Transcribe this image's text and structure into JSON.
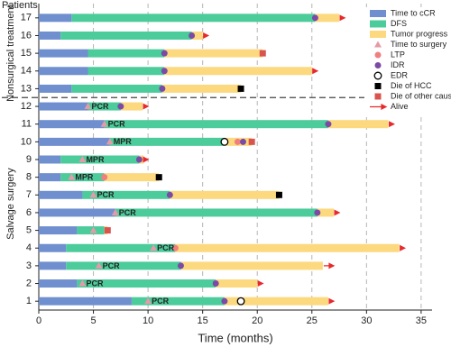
{
  "chart_data": {
    "type": "swimmer",
    "top_label": "Patients",
    "xlabel": "Time (months)",
    "xlim": [
      0,
      36
    ],
    "xticks": [
      0,
      5,
      10,
      15,
      20,
      25,
      30,
      35
    ],
    "grid": true,
    "categories": [
      "1",
      "2",
      "3",
      "4",
      "5",
      "6",
      "7",
      "8",
      "9",
      "10",
      "11",
      "12",
      "13",
      "14",
      "15",
      "16",
      "17"
    ],
    "groups": [
      {
        "label": "Salvage surgery",
        "count": 12
      },
      {
        "label": "Nonsurgical treatment",
        "count": 5
      }
    ],
    "series": [
      {
        "name": "Time to cCR",
        "color": "#6f8fcf",
        "values": [
          8.5,
          3.5,
          2.5,
          2.5,
          3.5,
          7,
          4,
          2,
          2,
          6.5,
          6,
          4.5,
          3,
          4.5,
          4.5,
          2,
          3
        ]
      },
      {
        "name": "DFS",
        "color": "#4ccb9b",
        "values": [
          8.5,
          12.7,
          10.5,
          10,
          2.5,
          18.5,
          8,
          4,
          7.2,
          10.5,
          20.5,
          3,
          8.3,
          7,
          7,
          12,
          22.3
        ]
      },
      {
        "name": "Tumor progress",
        "color": "#fcd97f",
        "values": [
          9.5,
          3.8,
          13,
          20.5,
          0.3,
          1.5,
          10,
          5,
          0.4,
          2.5,
          5.5,
          2,
          7.2,
          13.5,
          9,
          1,
          2.2
        ]
      }
    ],
    "markers": [
      {
        "name": "Time to surgery",
        "color": "#e59aa8",
        "shape": "triangle",
        "values": [
          10,
          4,
          5.5,
          10.5,
          5,
          7,
          5,
          3,
          4,
          6.5,
          6,
          4.5,
          null,
          null,
          null,
          null,
          null
        ]
      },
      {
        "name": "LTP",
        "color": "#f07f7f",
        "shape": "circle",
        "values": [
          null,
          null,
          null,
          12.5,
          null,
          null,
          null,
          6,
          null,
          18.2,
          null,
          null,
          null,
          null,
          null,
          null,
          null
        ]
      },
      {
        "name": "IDR",
        "color": "#7b4aa6",
        "shape": "circle",
        "values": [
          17,
          16.2,
          13,
          null,
          null,
          25.5,
          12,
          null,
          9.2,
          18.7,
          26.5,
          7.5,
          11.3,
          11.5,
          11.5,
          14,
          25.3
        ]
      },
      {
        "name": "EDR",
        "color": "#000000",
        "shape": "open-circle",
        "values": [
          18.5,
          null,
          null,
          null,
          null,
          null,
          null,
          null,
          null,
          17,
          null,
          null,
          null,
          null,
          null,
          null,
          null
        ]
      },
      {
        "name": "Die of HCC",
        "color": "#000000",
        "shape": "square",
        "values": [
          null,
          null,
          null,
          null,
          null,
          null,
          22,
          11,
          null,
          null,
          null,
          null,
          18.5,
          null,
          null,
          null,
          null
        ]
      },
      {
        "name": "Die of other causes",
        "color": "#d9534f",
        "shape": "square",
        "values": [
          null,
          null,
          null,
          null,
          6.3,
          null,
          null,
          null,
          null,
          19.5,
          null,
          null,
          null,
          null,
          20.5,
          null,
          null
        ]
      },
      {
        "name": "Alive",
        "color": "#e8282b",
        "shape": "arrow",
        "values": [
          27,
          20.5,
          27,
          33.5,
          null,
          27.5,
          null,
          null,
          10,
          null,
          32.5,
          10,
          null,
          25.5,
          null,
          15.5,
          28
        ]
      }
    ],
    "response_labels": [
      "PCR",
      "PCR",
      "PCR",
      "PCR",
      null,
      "PCR",
      "PCR",
      "MPR",
      "MPR",
      "MPR",
      "PCR",
      "PCR",
      null,
      null,
      null,
      null,
      null
    ]
  }
}
